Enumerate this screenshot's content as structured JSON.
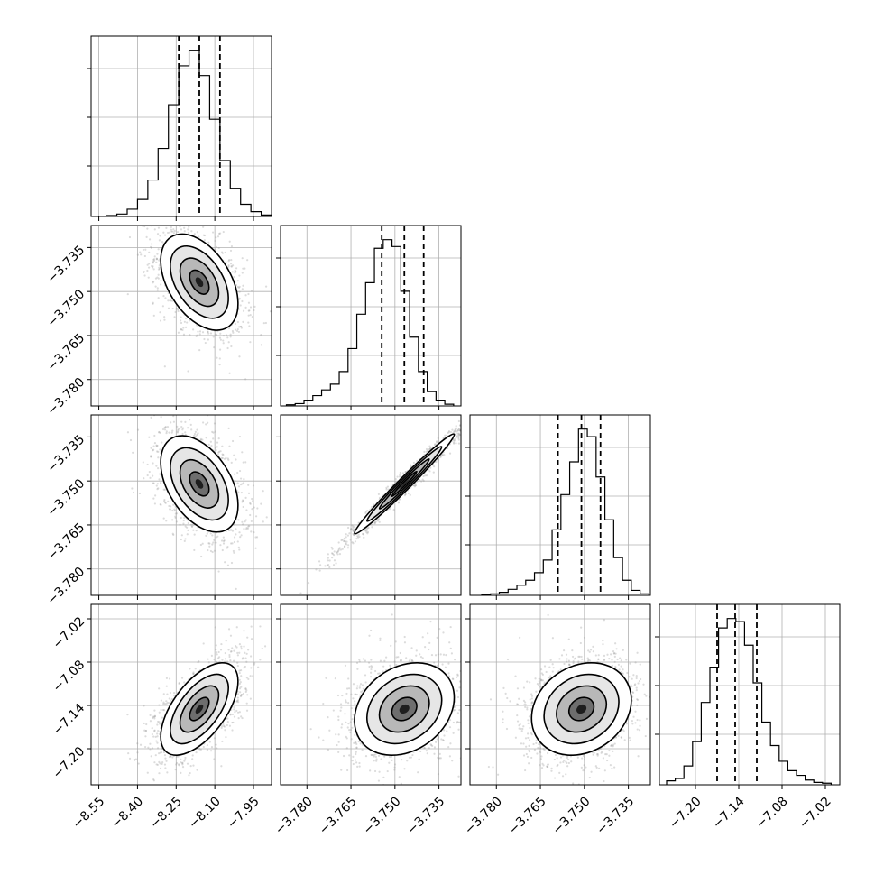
{
  "chart_data": {
    "type": "corner",
    "parameters": [
      {
        "index": 0,
        "range": [
          -8.58,
          -7.88
        ],
        "ticks": [
          -8.55,
          -8.4,
          -8.25,
          -8.1,
          -7.95
        ],
        "tick_labels": [
          "−8.55",
          "−8.40",
          "−8.25",
          "−8.10",
          "−7.95"
        ],
        "quantiles": [
          -8.24,
          -8.16,
          -8.08
        ],
        "median": -8.16
      },
      {
        "index": 1,
        "range": [
          -3.789,
          -3.7275
        ],
        "ticks": [
          -3.78,
          -3.765,
          -3.75,
          -3.735
        ],
        "tick_labels": [
          "−3.780",
          "−3.765",
          "−3.750",
          "−3.735"
        ],
        "quantiles": [
          -3.7545,
          -3.7468,
          -3.7402
        ],
        "median": -3.7468
      },
      {
        "index": 2,
        "range": [
          -3.789,
          -3.7275
        ],
        "ticks": [
          -3.78,
          -3.765,
          -3.75,
          -3.735
        ],
        "tick_labels": [
          "−3.780",
          "−3.765",
          "−3.750",
          "−3.735"
        ],
        "quantiles": [
          -3.759,
          -3.751,
          -3.7445
        ],
        "median": -3.751
      },
      {
        "index": 3,
        "range": [
          -7.25,
          -7.0
        ],
        "ticks": [
          -7.2,
          -7.14,
          -7.08,
          -7.02
        ],
        "tick_labels": [
          "−7.20",
          "−7.14",
          "−7.08",
          "−7.02"
        ],
        "quantiles": [
          -7.17,
          -7.145,
          -7.115
        ],
        "median": -7.145
      }
    ],
    "histograms": [
      {
        "param": 0,
        "bin_edges": [
          -8.52,
          -8.48,
          -8.44,
          -8.4,
          -8.36,
          -8.32,
          -8.28,
          -8.24,
          -8.2,
          -8.16,
          -8.12,
          -8.08,
          -8.04,
          -8.0,
          -7.96,
          -7.92,
          -7.88
        ],
        "counts": [
          2,
          5,
          15,
          35,
          75,
          140,
          230,
          310,
          342,
          290,
          200,
          115,
          58,
          25,
          10,
          3
        ]
      },
      {
        "param": 1,
        "bin_edges": [
          -3.787,
          -3.784,
          -3.781,
          -3.778,
          -3.775,
          -3.772,
          -3.769,
          -3.766,
          -3.763,
          -3.76,
          -3.757,
          -3.754,
          -3.751,
          -3.748,
          -3.745,
          -3.742,
          -3.739,
          -3.736,
          -3.733,
          -3.73
        ],
        "counts": [
          2,
          4,
          10,
          18,
          28,
          38,
          60,
          100,
          160,
          215,
          275,
          290,
          278,
          200,
          120,
          60,
          25,
          10,
          3
        ]
      },
      {
        "param": 2,
        "bin_edges": [
          -3.785,
          -3.782,
          -3.779,
          -3.776,
          -3.773,
          -3.77,
          -3.767,
          -3.764,
          -3.761,
          -3.758,
          -3.755,
          -3.752,
          -3.749,
          -3.746,
          -3.743,
          -3.74,
          -3.737,
          -3.734,
          -3.731,
          -3.728
        ],
        "counts": [
          1,
          3,
          6,
          12,
          20,
          30,
          45,
          70,
          130,
          200,
          265,
          330,
          315,
          235,
          150,
          75,
          30,
          10,
          3
        ]
      },
      {
        "param": 3,
        "bin_edges": [
          -7.24,
          -7.228,
          -7.216,
          -7.204,
          -7.192,
          -7.18,
          -7.168,
          -7.156,
          -7.144,
          -7.132,
          -7.12,
          -7.108,
          -7.096,
          -7.084,
          -7.072,
          -7.06,
          -7.048,
          -7.036,
          -7.024,
          -7.012
        ],
        "counts": [
          5,
          8,
          24,
          55,
          105,
          150,
          200,
          212,
          208,
          178,
          130,
          80,
          50,
          30,
          18,
          12,
          6,
          3,
          2
        ]
      }
    ],
    "pairs": [
      {
        "x": 0,
        "y": 1,
        "mean": [
          -8.16,
          -3.7468
        ],
        "sd": [
          0.075,
          0.0082
        ],
        "rho": -0.45
      },
      {
        "x": 0,
        "y": 2,
        "mean": [
          -8.16,
          -3.751
        ],
        "sd": [
          0.075,
          0.0082
        ],
        "rho": -0.45
      },
      {
        "x": 1,
        "y": 2,
        "mean": [
          -3.7468,
          -3.751
        ],
        "sd": [
          0.0085,
          0.0085
        ],
        "rho": 0.985
      },
      {
        "x": 0,
        "y": 3,
        "mean": [
          -8.16,
          -7.145
        ],
        "sd": [
          0.075,
          0.032
        ],
        "rho": 0.6
      },
      {
        "x": 1,
        "y": 3,
        "mean": [
          -3.7468,
          -7.145
        ],
        "sd": [
          0.0085,
          0.032
        ],
        "rho": 0.25
      },
      {
        "x": 2,
        "y": 3,
        "mean": [
          -3.751,
          -7.145
        ],
        "sd": [
          0.0085,
          0.032
        ],
        "rho": 0.2
      }
    ],
    "grid": true,
    "scatter_points_per_panel": 1500,
    "contour_levels_sigma": [
      0.5,
      1.0,
      1.5,
      2.0
    ]
  },
  "colors": {
    "frame": "#000000",
    "grid": "#b0b0b0",
    "points": "#9a9a9a",
    "density_dark": "#000000",
    "density_light": "#ffffff"
  }
}
